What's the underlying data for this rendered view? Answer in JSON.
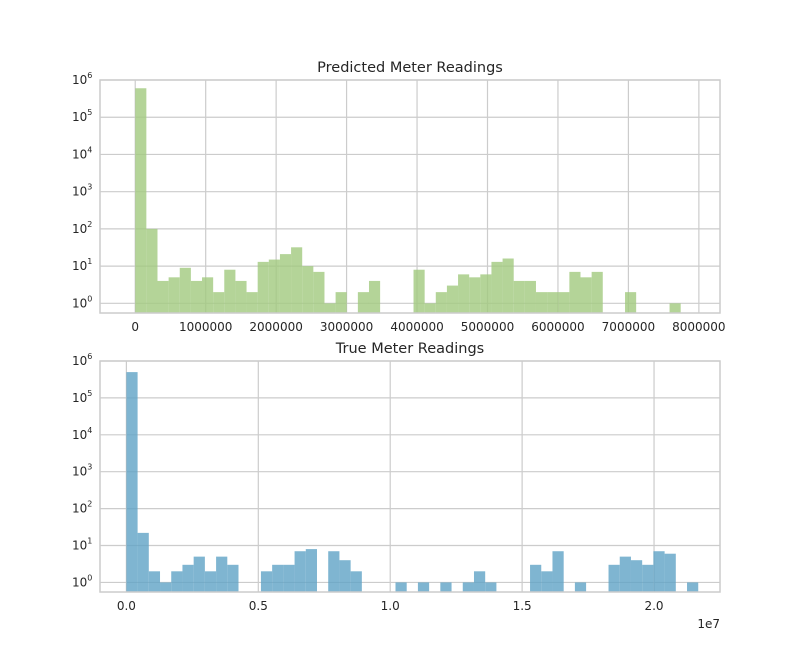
{
  "chart_data": [
    {
      "type": "bar",
      "title": "Predicted Meter Readings",
      "color": "#a1c97e",
      "yscale": "log",
      "xlim": [
        -500000,
        8300000
      ],
      "xticks": [
        0,
        1000000,
        2000000,
        3000000,
        4000000,
        5000000,
        6000000,
        7000000,
        8000000
      ],
      "xtick_labels": [
        "0",
        "1000000",
        "2000000",
        "3000000",
        "4000000",
        "5000000",
        "6000000",
        "7000000",
        "8000000"
      ],
      "ytick_exponents": [
        0,
        1,
        2,
        3,
        4,
        5,
        6
      ],
      "bin_width": 158000,
      "bins_start": [
        0,
        158000,
        316000,
        474000,
        632000,
        790000,
        948000,
        1106000,
        1264000,
        1422000,
        1580000,
        1738000,
        1896000,
        2054000,
        2212000,
        2370000,
        2528000,
        2686000,
        2844000,
        3002000,
        3160000,
        3318000,
        3476000,
        3634000,
        3792000,
        3950000,
        4108000,
        4266000,
        4424000,
        4582000,
        4740000,
        4898000,
        5056000,
        5214000,
        5372000,
        5530000,
        5688000,
        5846000,
        6004000,
        6162000,
        6320000,
        6478000,
        6636000,
        6794000,
        6952000,
        7110000,
        7268000,
        7426000,
        7584000
      ],
      "values": [
        600000,
        100,
        4,
        5,
        9,
        4,
        5,
        2,
        8,
        4,
        2,
        13,
        15,
        21,
        32,
        10,
        7,
        1,
        2,
        0,
        2,
        4,
        0,
        0,
        0,
        8,
        1,
        2,
        3,
        6,
        5,
        6,
        13,
        16,
        4,
        4,
        2,
        2,
        2,
        7,
        5,
        7,
        0,
        0,
        2,
        0,
        0,
        0,
        1
      ]
    },
    {
      "type": "bar",
      "title": "True Meter Readings",
      "color": "#5fa2c6",
      "yscale": "log",
      "xlim": [
        -0.1,
        2.25
      ],
      "x_offset_label": "1e7",
      "xticks": [
        0.0,
        0.5,
        1.0,
        1.5,
        2.0
      ],
      "xtick_labels": [
        "0.0",
        "0.5",
        "1.0",
        "1.5",
        "2.0"
      ],
      "ytick_exponents": [
        0,
        1,
        2,
        3,
        4,
        5,
        6
      ],
      "bin_width": 0.0425,
      "bins_start": [
        0.0,
        0.0425,
        0.085,
        0.1275,
        0.17,
        0.2125,
        0.255,
        0.2975,
        0.34,
        0.3825,
        0.425,
        0.4675,
        0.51,
        0.5525,
        0.595,
        0.6375,
        0.68,
        0.7225,
        0.765,
        0.8075,
        0.85,
        0.8925,
        0.935,
        0.9775,
        1.02,
        1.0625,
        1.105,
        1.1475,
        1.19,
        1.2325,
        1.275,
        1.3175,
        1.36,
        1.4025,
        1.445,
        1.4875,
        1.53,
        1.5725,
        1.615,
        1.6575,
        1.7,
        1.7425,
        1.785,
        1.8275,
        1.87,
        1.9125,
        1.955,
        1.9975,
        2.04,
        2.0825,
        2.125
      ],
      "values": [
        500000,
        22,
        2,
        1,
        2,
        3,
        5,
        2,
        5,
        3,
        0,
        0,
        2,
        3,
        3,
        7,
        8,
        0,
        7,
        4,
        2,
        0,
        0,
        0,
        1,
        0,
        1,
        0,
        1,
        0,
        1,
        2,
        1,
        0,
        0,
        0,
        3,
        2,
        7,
        0,
        1,
        0,
        0,
        3,
        5,
        4,
        3,
        7,
        6,
        0,
        1
      ]
    }
  ]
}
